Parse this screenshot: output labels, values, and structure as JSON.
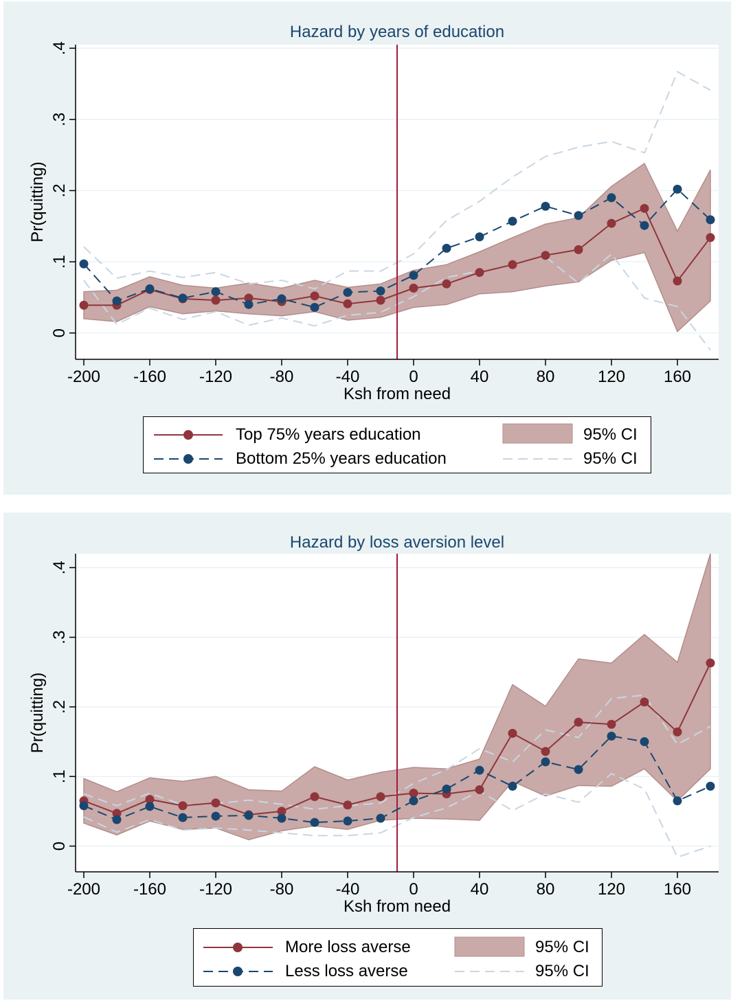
{
  "colors": {
    "background": "#eaf2f3",
    "plot_area": "#ffffff",
    "grid": "#eaf2f3",
    "title": "#1a476f",
    "series_main": "#90353b",
    "series_alt": "#1a476f",
    "ci_band_fill": "#c9aaa8",
    "ci_band_stroke": "#b38d8a",
    "ci_alt_line": "#c9d6e3",
    "vline": "#a4193d"
  },
  "chart_data": [
    {
      "type": "line",
      "title": "Hazard by years of education",
      "xlabel": "Ksh from need",
      "ylabel": "Pr(quitting)",
      "xlim": [
        -205,
        185
      ],
      "ylim": [
        -0.037,
        0.405
      ],
      "xticks": [
        -200,
        -160,
        -120,
        -80,
        -40,
        0,
        40,
        80,
        120,
        160
      ],
      "xtick_labels": [
        "-200",
        "-160",
        "-120",
        "-80",
        "-40",
        "0",
        "40",
        "80",
        "120",
        "160"
      ],
      "yticks": [
        0,
        0.1,
        0.2,
        0.3,
        0.4
      ],
      "ytick_labels": [
        "0",
        ".1",
        ".2",
        ".3",
        ".4"
      ],
      "grid": true,
      "vline": -10,
      "x": [
        -200,
        -180,
        -160,
        -140,
        -120,
        -100,
        -80,
        -60,
        -40,
        -20,
        0,
        20,
        40,
        60,
        80,
        100,
        120,
        140,
        160,
        180
      ],
      "series": [
        {
          "name": "Top 75% years education",
          "style": "solid",
          "color": "#90353b",
          "values": [
            0.039,
            0.039,
            0.061,
            0.048,
            0.046,
            0.049,
            0.044,
            0.052,
            0.041,
            0.046,
            0.063,
            0.069,
            0.085,
            0.096,
            0.109,
            0.117,
            0.154,
            0.175,
            0.073,
            0.134
          ]
        },
        {
          "name": "Bottom 25% years education",
          "style": "dash",
          "color": "#1a476f",
          "values": [
            0.097,
            0.045,
            0.062,
            0.049,
            0.058,
            0.04,
            0.048,
            0.036,
            0.057,
            0.059,
            0.081,
            0.119,
            0.135,
            0.157,
            0.178,
            0.165,
            0.19,
            0.151,
            0.202,
            0.159
          ]
        }
      ],
      "ci_band": {
        "name": "95% CI",
        "lower": [
          0.02,
          0.016,
          0.037,
          0.027,
          0.031,
          0.027,
          0.024,
          0.03,
          0.018,
          0.022,
          0.036,
          0.04,
          0.055,
          0.058,
          0.066,
          0.072,
          0.102,
          0.113,
          0.002,
          0.045
        ],
        "upper": [
          0.058,
          0.06,
          0.079,
          0.067,
          0.063,
          0.07,
          0.063,
          0.074,
          0.064,
          0.069,
          0.088,
          0.096,
          0.114,
          0.134,
          0.153,
          0.162,
          0.206,
          0.238,
          0.143,
          0.229
        ]
      },
      "ci_lines": {
        "name": "95% CI",
        "lower": [
          0.074,
          0.012,
          0.035,
          0.019,
          0.03,
          0.011,
          0.021,
          0.01,
          0.025,
          0.029,
          0.051,
          0.078,
          0.087,
          null,
          0.107,
          0.07,
          0.111,
          0.049,
          0.037,
          -0.024
        ],
        "upper": [
          0.121,
          0.077,
          0.087,
          0.078,
          0.085,
          0.069,
          0.074,
          0.062,
          0.087,
          0.087,
          0.111,
          0.158,
          0.185,
          0.219,
          0.248,
          0.261,
          0.269,
          0.253,
          0.367,
          0.341
        ]
      },
      "legend": {
        "position": "bottom",
        "items": [
          "Top 75% years education",
          "Bottom 25% years education",
          "95% CI",
          "95% CI"
        ]
      }
    },
    {
      "type": "line",
      "title": "Hazard by loss aversion level",
      "xlabel": "Ksh from need",
      "ylabel": "Pr(quitting)",
      "xlim": [
        -205,
        185
      ],
      "ylim": [
        -0.037,
        0.42
      ],
      "xticks": [
        -200,
        -160,
        -120,
        -80,
        -40,
        0,
        40,
        80,
        120,
        160
      ],
      "xtick_labels": [
        "-200",
        "-160",
        "-120",
        "-80",
        "-40",
        "0",
        "40",
        "80",
        "120",
        "160"
      ],
      "yticks": [
        0,
        0.1,
        0.2,
        0.3,
        0.4
      ],
      "ytick_labels": [
        "0",
        ".1",
        ".2",
        ".3",
        ".4"
      ],
      "grid": true,
      "vline": -10,
      "x": [
        -200,
        -180,
        -160,
        -140,
        -120,
        -100,
        -80,
        -60,
        -40,
        -20,
        0,
        20,
        40,
        60,
        80,
        100,
        120,
        140,
        160,
        180
      ],
      "series": [
        {
          "name": "More loss averse",
          "style": "solid",
          "color": "#90353b",
          "values": [
            0.065,
            0.047,
            0.067,
            0.058,
            0.062,
            0.045,
            0.05,
            0.071,
            0.059,
            0.071,
            0.076,
            0.075,
            0.081,
            0.162,
            0.136,
            0.178,
            0.175,
            0.207,
            0.164,
            0.263
          ]
        },
        {
          "name": "Less loss averse",
          "style": "dash",
          "color": "#1a476f",
          "values": [
            0.058,
            0.038,
            0.057,
            0.041,
            0.043,
            0.044,
            0.04,
            0.034,
            0.036,
            0.04,
            0.065,
            0.082,
            0.109,
            0.086,
            0.121,
            0.11,
            0.158,
            0.15,
            0.065,
            0.086
          ]
        }
      ],
      "ci_band": {
        "name": "95% CI",
        "lower": [
          0.033,
          0.016,
          0.036,
          0.024,
          0.026,
          0.009,
          0.022,
          0.029,
          0.024,
          0.037,
          0.04,
          0.039,
          0.037,
          0.093,
          0.072,
          0.087,
          0.086,
          0.111,
          0.065,
          0.111
        ],
        "upper": [
          0.097,
          0.078,
          0.098,
          0.093,
          0.1,
          0.081,
          0.079,
          0.114,
          0.095,
          0.106,
          0.113,
          0.111,
          0.125,
          0.232,
          0.201,
          0.269,
          0.263,
          0.304,
          0.264,
          0.42
        ]
      },
      "ci_lines": {
        "name": "95% CI",
        "lower": [
          0.042,
          0.02,
          0.038,
          0.023,
          0.026,
          0.023,
          0.019,
          0.015,
          0.015,
          0.019,
          0.041,
          0.055,
          0.079,
          0.051,
          0.075,
          0.063,
          0.104,
          0.082,
          -0.016,
          0.0
        ],
        "upper": [
          0.075,
          0.058,
          0.076,
          0.059,
          0.061,
          0.066,
          0.06,
          0.053,
          0.058,
          0.062,
          0.09,
          0.11,
          0.14,
          0.121,
          0.167,
          0.156,
          0.212,
          0.217,
          0.146,
          0.172
        ]
      },
      "legend": {
        "position": "bottom",
        "items": [
          "More loss averse",
          "Less loss averse",
          "95% CI",
          "95% CI"
        ]
      }
    }
  ]
}
